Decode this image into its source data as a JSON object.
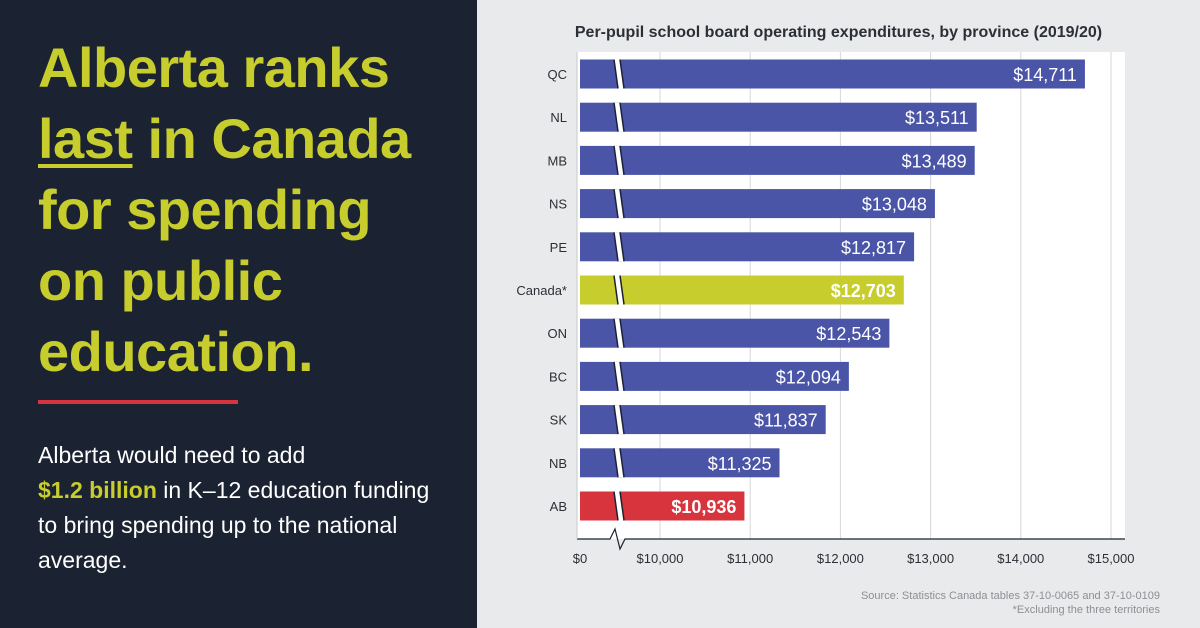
{
  "headline": {
    "line1": "Alberta ranks",
    "emph": "last",
    "line2_rest": " in Canada",
    "line3": "for spending",
    "line4": "on public",
    "line5": "education."
  },
  "body": {
    "before": "Alberta would need to add",
    "amount": "$1.2 billion",
    "after": " in K–12 education funding to bring spending up to the national average."
  },
  "colors": {
    "left_bg": "#1b2231",
    "accent_yellow": "#c7cd2c",
    "accent_red": "#d7343d",
    "bar_blue": "#4b55a8",
    "right_bg": "#e9eaeb"
  },
  "source": {
    "line1": "Source: Statistics Canada tables 37-10-0065 and 37-10-0109",
    "line2": "*Excluding the three territories"
  },
  "chart_data": {
    "type": "bar",
    "orientation": "horizontal",
    "title": "Per-pupil school board operating expenditures, by province (2019/20)",
    "categories": [
      "QC",
      "NL",
      "MB",
      "NS",
      "PE",
      "Canada*",
      "ON",
      "BC",
      "SK",
      "NB",
      "AB"
    ],
    "values": [
      14711,
      13511,
      13489,
      13048,
      12817,
      12703,
      12543,
      12094,
      11837,
      11325,
      10936
    ],
    "value_labels": [
      "$14,711",
      "$13,511",
      "$13,489",
      "$13,048",
      "$12,817",
      "$12,703",
      "$12,543",
      "$12,094",
      "$11,837",
      "$11,325",
      "$10,936"
    ],
    "highlight": {
      "Canada*": "yellow",
      "AB": "red"
    },
    "x_ticks": [
      0,
      10000,
      11000,
      12000,
      13000,
      14000,
      15000
    ],
    "x_tick_labels": [
      "$0",
      "$10,000",
      "$11,000",
      "$12,000",
      "$13,000",
      "$14,000",
      "$15,000"
    ],
    "xlim": [
      0,
      15000
    ],
    "axis_break": "between 0 and 10,000",
    "grid": true,
    "xlabel": "",
    "ylabel": ""
  }
}
